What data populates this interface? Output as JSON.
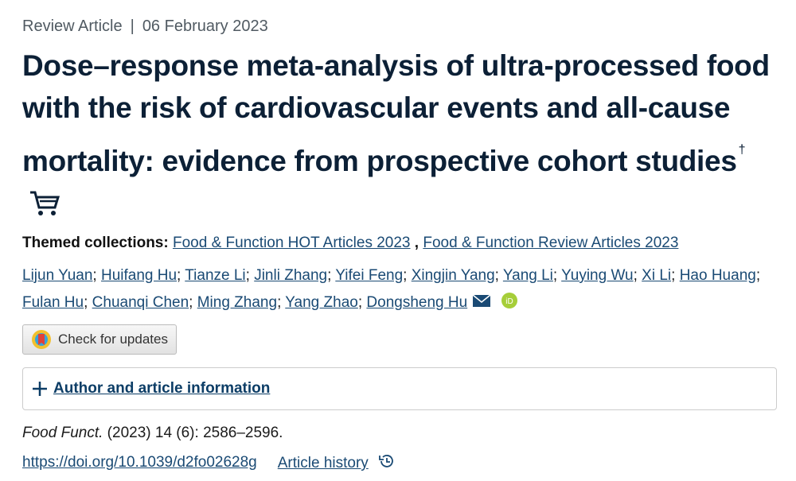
{
  "header": {
    "article_type": "Review Article",
    "separator": "|",
    "date": "06 February 2023"
  },
  "title": {
    "text": "Dose–response meta-analysis of ultra-processed food with the risk of cardiovascular events and all-cause mortality: evidence from prospective cohort studies",
    "footnote_mark": "†"
  },
  "themed_collections": {
    "label": "Themed collections:",
    "items": [
      "Food & Function HOT Articles 2023",
      "Food & Function Review Articles 2023"
    ],
    "separator": ","
  },
  "authors": {
    "names": [
      "Lijun Yuan",
      "Huifang Hu",
      "Tianze Li",
      "Jinli Zhang",
      "Yifei Feng",
      "Xingjin Yang",
      "Yang Li",
      "Yuying Wu",
      "Xi Li",
      "Hao Huang",
      "Fulan Hu",
      "Chuanqi Chen",
      "Ming Zhang",
      "Yang Zhao",
      "Dongsheng Hu"
    ],
    "separator": ";"
  },
  "check_updates": {
    "label": "Check for updates"
  },
  "accordion": {
    "label": "Author and article information"
  },
  "citation": {
    "journal": "Food Funct.",
    "details": "(2023) 14 (6): 2586–2596."
  },
  "links": {
    "doi": "https://doi.org/10.1039/d2fo02628g",
    "history": "Article history"
  }
}
